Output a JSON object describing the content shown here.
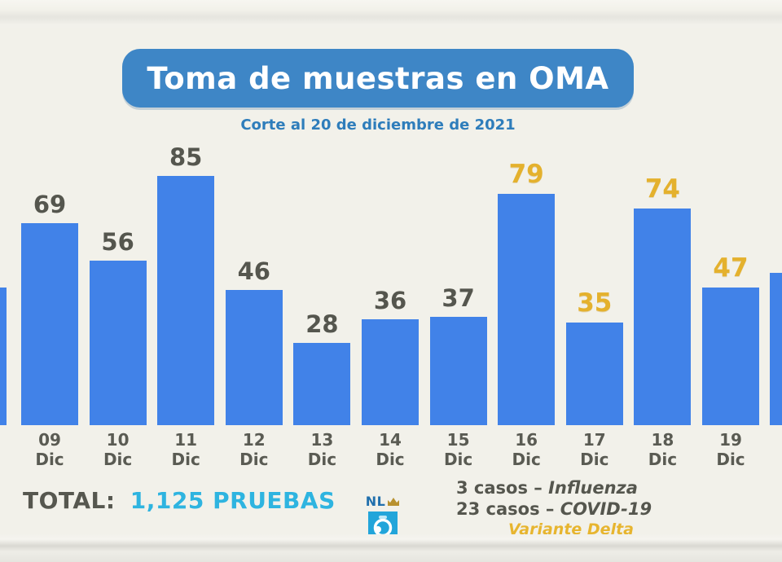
{
  "header": {
    "title": "Toma de muestras en OMA",
    "subtitle": "Corte al 20 de diciembre de 2021"
  },
  "chart_data": {
    "type": "bar",
    "title": "Toma de muestras en OMA",
    "subtitle": "Corte al 20 de diciembre de 2021",
    "categories": [
      "09 Dic",
      "10 Dic",
      "11 Dic",
      "12 Dic",
      "13 Dic",
      "14 Dic",
      "15 Dic",
      "16 Dic",
      "17 Dic",
      "18 Dic",
      "19 Dic"
    ],
    "values": [
      69,
      56,
      85,
      46,
      28,
      36,
      37,
      79,
      35,
      74,
      47
    ],
    "bars": [
      {
        "day": "09",
        "month": "Dic",
        "value": 69,
        "label_style": "dark"
      },
      {
        "day": "10",
        "month": "Dic",
        "value": 56,
        "label_style": "dark"
      },
      {
        "day": "11",
        "month": "Dic",
        "value": 85,
        "label_style": "dark"
      },
      {
        "day": "12",
        "month": "Dic",
        "value": 46,
        "label_style": "dark"
      },
      {
        "day": "13",
        "month": "Dic",
        "value": 28,
        "label_style": "dark"
      },
      {
        "day": "14",
        "month": "Dic",
        "value": 36,
        "label_style": "dark"
      },
      {
        "day": "15",
        "month": "Dic",
        "value": 37,
        "label_style": "dark"
      },
      {
        "day": "16",
        "month": "Dic",
        "value": 79,
        "label_style": "yellow"
      },
      {
        "day": "17",
        "month": "Dic",
        "value": 35,
        "label_style": "yellow"
      },
      {
        "day": "18",
        "month": "Dic",
        "value": 74,
        "label_style": "yellow"
      },
      {
        "day": "19",
        "month": "Dic",
        "value": 47,
        "label_style": "yellow"
      }
    ],
    "edge_bars": [
      {
        "side": "left",
        "value_estimate": 47
      },
      {
        "side": "right",
        "value_estimate": 52
      }
    ],
    "bar_color": "#4182e8",
    "value_label_color_dark": "#55564e",
    "value_label_color_highlight": "#e4b12d",
    "ylim": [
      0,
      95
    ],
    "grid": false,
    "legend": "none"
  },
  "footer": {
    "total_label": "TOTAL:",
    "total_value": "1,125 PRUEBAS",
    "cases": [
      {
        "plain": "3 casos –",
        "italic": "Influenza"
      },
      {
        "plain": "23 casos –",
        "italic": "COVID-19"
      }
    ],
    "variant_note": "Variante Delta",
    "logo_text": "NL"
  },
  "colors": {
    "background": "#f2f1ea",
    "title_banner": "#3e86c6",
    "subtitle_text": "#2e7dbb",
    "total_value_accent": "#2eb4e0",
    "variant_accent": "#e7b52f"
  }
}
